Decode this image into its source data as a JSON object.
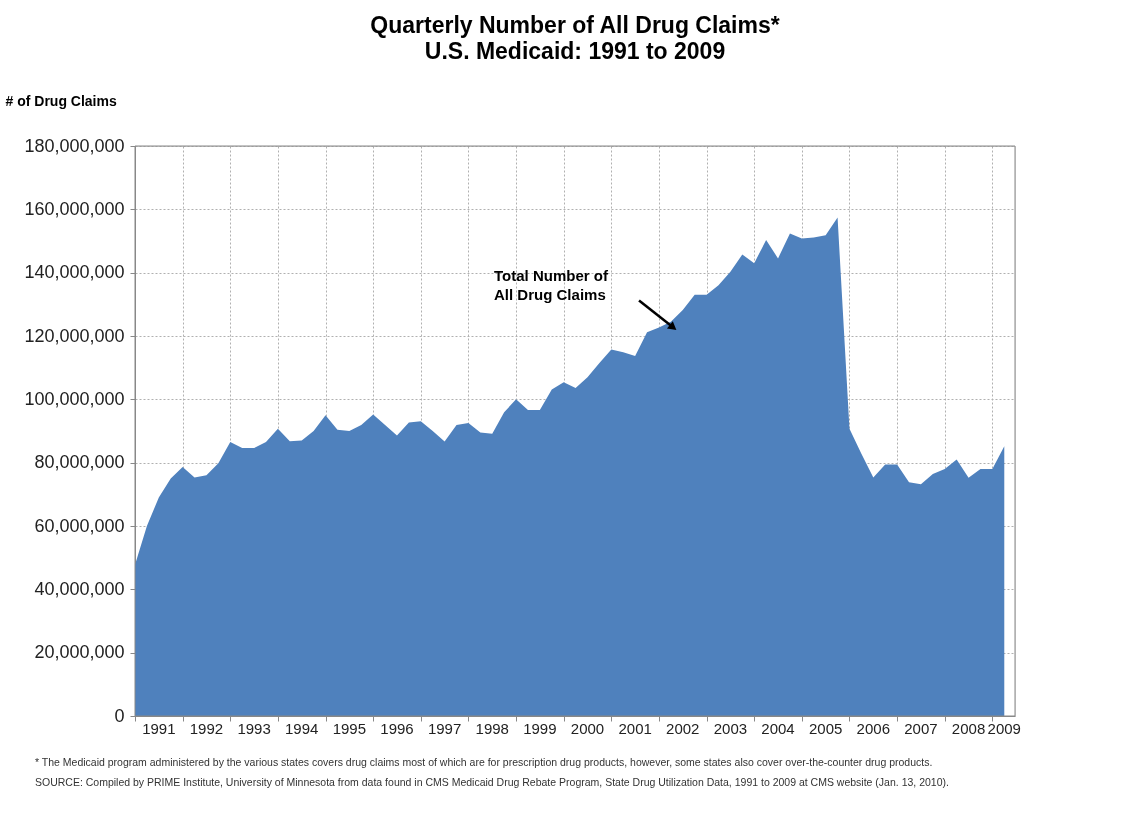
{
  "chart_data": {
    "type": "area",
    "title": "Quarterly Number of All Drug Claims*",
    "subtitle": "U.S. Medicaid: 1991 to 2009",
    "ylabel": "# of Drug Claims",
    "categories": [
      null,
      null,
      "1991",
      null,
      null,
      null,
      "1992",
      null,
      null,
      null,
      "1993",
      null,
      null,
      null,
      "1994",
      null,
      null,
      null,
      "1995",
      null,
      null,
      null,
      "1996",
      null,
      null,
      null,
      "1997",
      null,
      null,
      null,
      "1998",
      null,
      null,
      null,
      "1999",
      null,
      null,
      null,
      "2000",
      null,
      null,
      null,
      "2001",
      null,
      null,
      null,
      "2002",
      null,
      null,
      null,
      "2003",
      null,
      null,
      null,
      "2004",
      null,
      null,
      null,
      "2005",
      null,
      null,
      null,
      "2006",
      null,
      null,
      null,
      "2007",
      null,
      null,
      null,
      "2008",
      null,
      null,
      "2009"
    ],
    "series": [
      {
        "color": "#4f81bd",
        "values": [
          47800000,
          60000000,
          69000000,
          75000000,
          78600000,
          75300000,
          76000000,
          79800000,
          86500000,
          84600000,
          84600000,
          86500000,
          90700000,
          86800000,
          87000000,
          90000000,
          95000000,
          90400000,
          90000000,
          91900000,
          95200000,
          91900000,
          88600000,
          92700000,
          93100000,
          90000000,
          86700000,
          91900000,
          92500000,
          89500000,
          89100000,
          95900000,
          100000000,
          96600000,
          96600000,
          103100000,
          105400000,
          103600000,
          107000000,
          111500000,
          115700000,
          114900000,
          113700000,
          121200000,
          122700000,
          124500000,
          128200000,
          133000000,
          133000000,
          136000000,
          140300000,
          145700000,
          143000000,
          150300000,
          144500000,
          152400000,
          150800000,
          151100000,
          151800000,
          157400000,
          90700000,
          82800000,
          75300000,
          79400000,
          79400000,
          73800000,
          73200000,
          76400000,
          78000000,
          81000000,
          75200000,
          78000000,
          78000000,
          85200000
        ]
      }
    ],
    "ylim": [
      0,
      180000000
    ],
    "yticks": [
      {
        "value": 0,
        "label": "0"
      },
      {
        "value": 20000000,
        "label": "20,000,000"
      },
      {
        "value": 40000000,
        "label": "40,000,000"
      },
      {
        "value": 60000000,
        "label": "60,000,000"
      },
      {
        "value": 80000000,
        "label": "80,000,000"
      },
      {
        "value": 100000000,
        "label": "100,000,000"
      },
      {
        "value": 120000000,
        "label": "120,000,000"
      },
      {
        "value": 140000000,
        "label": "140,000,000"
      },
      {
        "value": 160000000,
        "label": "160,000,000"
      },
      {
        "value": 180000000,
        "label": "180,000,000"
      }
    ],
    "grid": true,
    "annotations": [
      "Total Number of\nAll Drug Claims",
      "* The Medicaid program administered by the various states covers drug claims most of which are for prescription drug products, however, some states also cover over-the-counter drug products.",
      "SOURCE:  Compiled by PRIME Institute, University of Minnesota from data found in CMS Medicaid Drug Rebate Program, State Drug Utilization Data, 1991 to 2009 at CMS website (Jan. 13, 2010)."
    ]
  }
}
